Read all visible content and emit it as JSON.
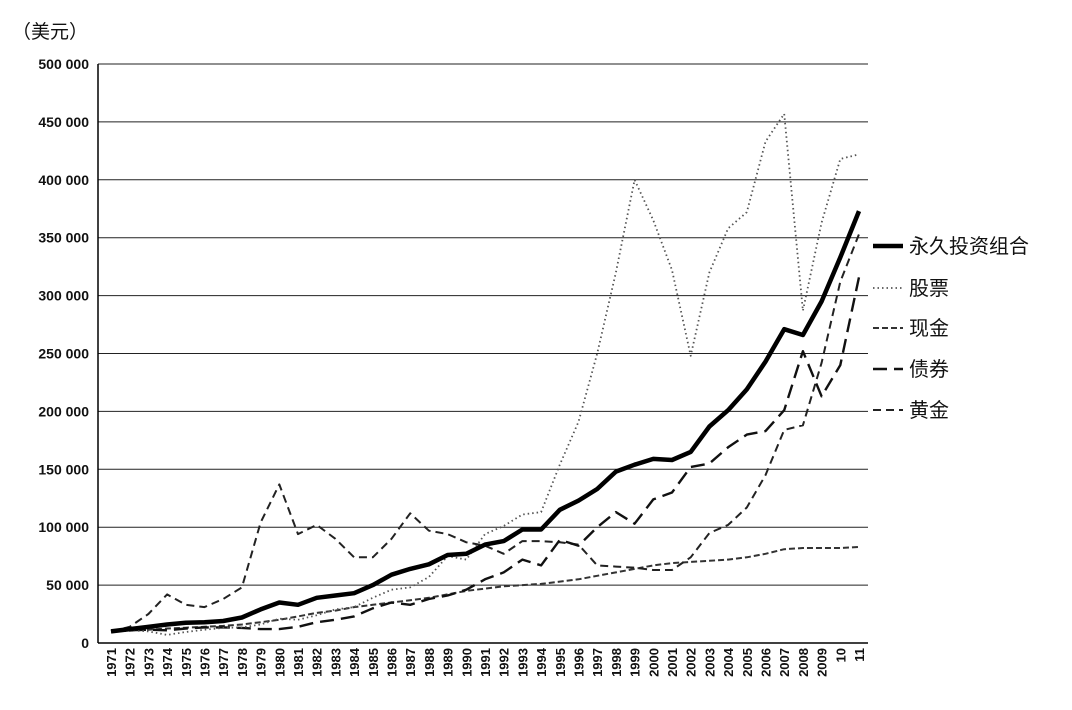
{
  "chart_data": {
    "type": "line",
    "unit_label": "（美元）",
    "ylim": [
      0,
      500000
    ],
    "y_ticks": [
      0,
      50000,
      100000,
      150000,
      200000,
      250000,
      300000,
      350000,
      400000,
      450000,
      500000
    ],
    "y_tick_labels": [
      "0",
      "50 000",
      "100 000",
      "150 000",
      "200 000",
      "250 000",
      "300 000",
      "350 000",
      "400 000",
      "450 000",
      "500 000"
    ],
    "grid": true,
    "legend_position": "right",
    "x": [
      "1971",
      "1972",
      "1973",
      "1974",
      "1975",
      "1976",
      "1977",
      "1978",
      "1979",
      "1980",
      "1981",
      "1982",
      "1983",
      "1984",
      "1985",
      "1986",
      "1987",
      "1988",
      "1989",
      "1990",
      "1991",
      "1992",
      "1993",
      "1994",
      "1995",
      "1996",
      "1997",
      "1998",
      "1999",
      "2000",
      "2001",
      "2002",
      "2003",
      "2004",
      "2005",
      "2006",
      "2007",
      "2008",
      "2009",
      "10",
      "11"
    ],
    "series": [
      {
        "name": "永久投资组合",
        "style": "solid-thick",
        "color": "#000000",
        "values": [
          10000,
          12000,
          14000,
          16000,
          17500,
          18000,
          19000,
          22000,
          29000,
          35000,
          33000,
          39000,
          41000,
          43000,
          50000,
          59000,
          64000,
          68000,
          76000,
          77000,
          85000,
          88000,
          98000,
          98000,
          115000,
          123000,
          133000,
          148000,
          154000,
          159000,
          158000,
          165000,
          187000,
          201000,
          219000,
          243000,
          271000,
          266000,
          295000,
          333000,
          373000
        ]
      },
      {
        "name": "股票",
        "style": "dotted",
        "color": "#555555",
        "values": [
          10000,
          11000,
          10000,
          7000,
          9500,
          11500,
          13000,
          13500,
          16000,
          21000,
          20000,
          24000,
          29000,
          31000,
          39000,
          46000,
          48000,
          57000,
          75000,
          72000,
          94000,
          101000,
          111000,
          113000,
          154000,
          191000,
          250000,
          320000,
          400000,
          365000,
          322000,
          248000,
          320000,
          358000,
          372000,
          433000,
          457000,
          287000,
          363000,
          418000,
          422000
        ]
      },
      {
        "name": "现金",
        "style": "dashed-fine",
        "color": "#333333",
        "values": [
          10000,
          10600,
          11500,
          12500,
          13200,
          14000,
          14800,
          16000,
          18000,
          20000,
          23000,
          26000,
          28000,
          31000,
          33000,
          35000,
          37000,
          39000,
          42000,
          45000,
          47000,
          49000,
          50000,
          51000,
          53000,
          55000,
          58000,
          61000,
          64000,
          67000,
          69000,
          70000,
          71000,
          72000,
          74000,
          77000,
          81000,
          82000,
          82000,
          82000,
          83000
        ]
      },
      {
        "name": "债券",
        "style": "dashed-long",
        "color": "#111111",
        "values": [
          10000,
          11000,
          11500,
          11000,
          12500,
          13500,
          13500,
          13000,
          12000,
          12000,
          14000,
          18000,
          20000,
          23000,
          30000,
          35000,
          33000,
          38000,
          41000,
          46000,
          55000,
          61000,
          72000,
          67000,
          89000,
          84000,
          100000,
          113000,
          103000,
          124000,
          130000,
          152000,
          155000,
          169000,
          180000,
          183000,
          201000,
          252000,
          213000,
          240000,
          316000
        ]
      },
      {
        "name": "黄金",
        "style": "dashed-medium",
        "color": "#222222",
        "values": [
          10000,
          14000,
          25000,
          42000,
          33000,
          31000,
          38000,
          48000,
          104000,
          137000,
          94000,
          102000,
          90000,
          74000,
          74000,
          90000,
          112000,
          97000,
          94000,
          87000,
          84000,
          77000,
          88000,
          88000,
          87000,
          85000,
          67000,
          66000,
          65000,
          63000,
          63000,
          74000,
          95000,
          102000,
          117000,
          145000,
          184000,
          188000,
          242000,
          312000,
          353000
        ]
      }
    ]
  }
}
